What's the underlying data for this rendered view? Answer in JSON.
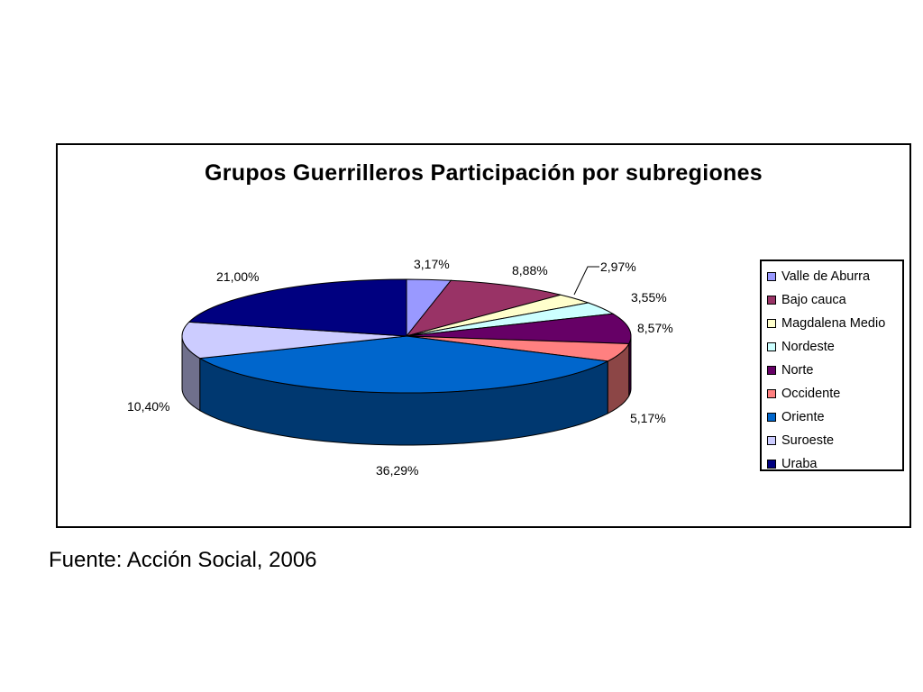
{
  "chart_data": {
    "type": "pie",
    "title": "Grupos Guerrilleros Participación por subregiones",
    "categories": [
      "Valle de Aburra",
      "Bajo cauca",
      "Magdalena Medio",
      "Nordeste",
      "Norte",
      "Occidente",
      "Oriente",
      "Suroeste",
      "Uraba"
    ],
    "values": [
      3.17,
      8.88,
      2.97,
      3.55,
      8.57,
      5.17,
      36.29,
      10.4,
      21.0
    ],
    "labels": [
      "3,17%",
      "8,88%",
      "2,97%",
      "3,55%",
      "8,57%",
      "5,17%",
      "36,29%",
      "10,40%",
      "21,00%"
    ],
    "colors": [
      "#9999FF",
      "#993366",
      "#FFFFCC",
      "#CCFFFF",
      "#660066",
      "#FF8080",
      "#0066CC",
      "#CCCCFF",
      "#000080"
    ],
    "legend_position": "right",
    "style": "3d-exploded-none"
  },
  "legend": {
    "items": [
      "Valle de Aburra",
      "Bajo cauca",
      "Magdalena Medio",
      "Nordeste",
      "Norte",
      "Occidente",
      "Oriente",
      "Suroeste",
      "Uraba"
    ]
  },
  "source": "Fuente: Acción Social, 2006"
}
